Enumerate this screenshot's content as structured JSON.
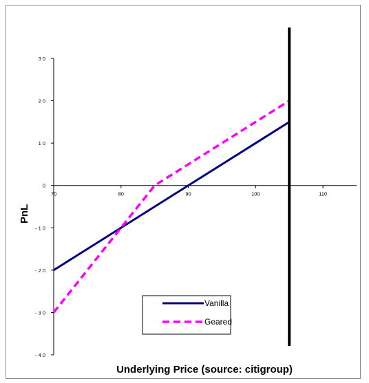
{
  "chart_data": {
    "type": "line",
    "title": "",
    "xlabel": "Underlying Price (source: citigroup)",
    "ylabel": "PnL",
    "xlim": [
      70,
      115
    ],
    "ylim": [
      -40,
      30
    ],
    "x_ticks": [
      "70",
      "80",
      "90",
      "100",
      "110"
    ],
    "y_ticks": [
      "3 0",
      "2 0",
      "1 0",
      "0",
      "- 1 0",
      "- 2 0",
      "- 3 0",
      "- 4 0"
    ],
    "grid": false,
    "legend_position": "bottom-center",
    "vertical_marker_x": 105,
    "series": [
      {
        "name": "Vanilla",
        "color": "#000080",
        "style": "solid",
        "x": [
          70,
          105
        ],
        "y": [
          -20,
          15
        ]
      },
      {
        "name": "Geared",
        "color": "#ff00ff",
        "style": "dashed",
        "x": [
          70,
          75,
          80,
          85,
          90,
          95,
          100,
          105
        ],
        "y": [
          -30,
          -20,
          -10,
          0,
          5,
          10,
          15,
          20
        ]
      }
    ]
  }
}
